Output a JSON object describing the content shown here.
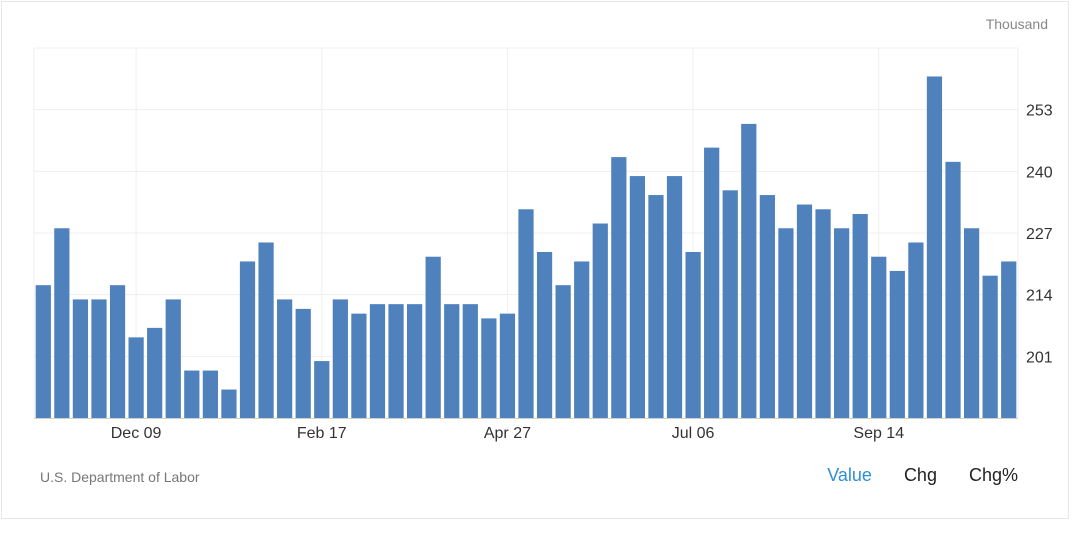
{
  "chart_data": {
    "type": "bar",
    "unit": "Thousand",
    "ylim": [
      188,
      266
    ],
    "y_ticks": [
      201,
      214,
      227,
      240,
      253
    ],
    "x_ticks": [
      {
        "index": 5,
        "label": "Dec 09"
      },
      {
        "index": 15,
        "label": "Feb 17"
      },
      {
        "index": 25,
        "label": "Apr 27"
      },
      {
        "index": 35,
        "label": "Jul 06"
      },
      {
        "index": 45,
        "label": "Sep 14"
      }
    ],
    "values": [
      216,
      228,
      213,
      213,
      216,
      205,
      207,
      213,
      198,
      198,
      194,
      221,
      225,
      213,
      211,
      200,
      213,
      210,
      212,
      212,
      212,
      222,
      212,
      212,
      209,
      210,
      232,
      223,
      216,
      221,
      229,
      243,
      239,
      235,
      239,
      223,
      245,
      236,
      250,
      235,
      228,
      233,
      232,
      228,
      231,
      222,
      219,
      225,
      260,
      242,
      228,
      218,
      221
    ],
    "bar_color": "#4f81bd",
    "grid": true
  },
  "footer": {
    "source": "U.S. Department of Labor",
    "tabs": [
      "Value",
      "Chg",
      "Chg%"
    ],
    "active_tab": "Value"
  }
}
